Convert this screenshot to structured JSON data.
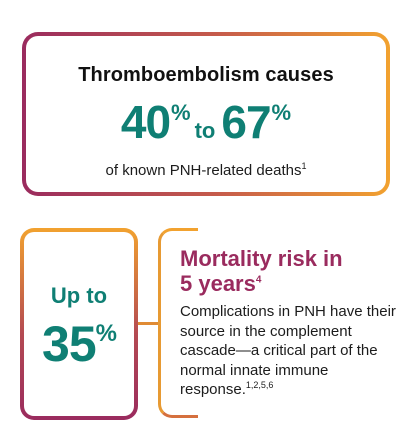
{
  "top_card": {
    "title": "Thromboembolism causes",
    "stat_low": "40",
    "stat_low_unit": "%",
    "stat_connector": "to",
    "stat_high": "67",
    "stat_high_unit": "%",
    "subtitle": "of known PNH-related deaths",
    "subtitle_ref": "1"
  },
  "left_card": {
    "prefix": "Up to",
    "value": "35",
    "unit": "%"
  },
  "right_block": {
    "title_line1": "Mortality risk in",
    "title_line2": "5 years",
    "title_ref": "4",
    "body": "Complications in PNH have their source in the complement cascade—a critical part of the normal innate immune response.",
    "body_ref": "1,2,5,6"
  },
  "colors": {
    "teal": "#0f7f74",
    "plum": "#9a2b5e",
    "orange": "#f2a22f"
  }
}
